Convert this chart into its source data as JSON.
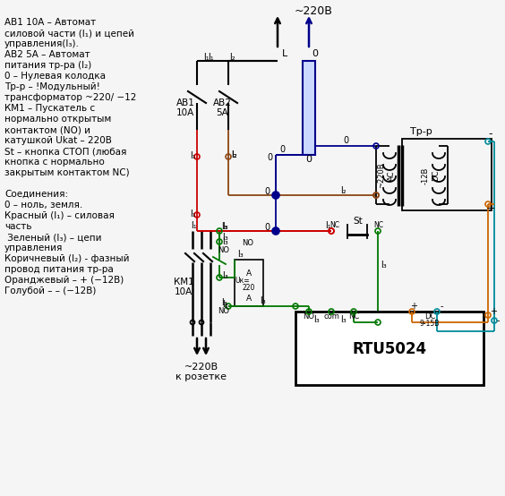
{
  "bg": "#f5f5f5",
  "BK": "#000000",
  "RD": "#cc0000",
  "GN": "#007700",
  "BL": "#00008b",
  "BR": "#8B4513",
  "OR": "#cc6600",
  "CY": "#008b9b",
  "legend": [
    "AB1 10A – Автомат",
    "силовой части (l₁) и цепей",
    "управления(l₃).",
    "AB2 5A – Автомат",
    "питания тр-ра (l₂)",
    "0 – Нулевая колодка",
    "Тр-р – !Модульный!",
    "трансформатор ~220/ −12",
    "КМ1 – Пускатель с",
    "нормально открытым",
    "контактом (NO) и",
    "катушкой Ukat – 220В",
    "St – кнопка СТОП (любая",
    "кнопка с нормально",
    "закрытым контактом NC)",
    "",
    "Соединения:",
    "0 – ноль, земля.",
    "Красный (l₁) – силовая",
    "часть",
    " Зеленый (l₃) – цепи",
    "управления",
    "Коричневый (l₂) - фазный",
    "провод питания тр-ра",
    "Оранджевый – + (−12В)",
    "Голубой – – (−12В)"
  ]
}
